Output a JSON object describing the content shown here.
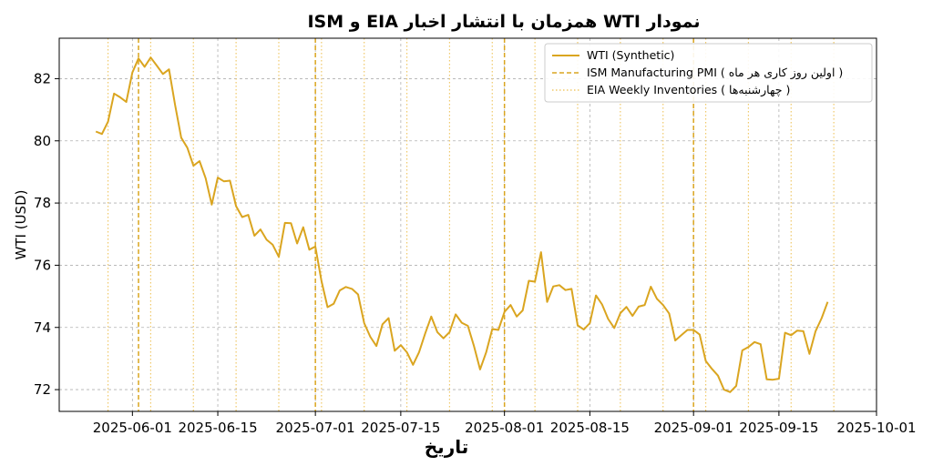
{
  "chart_data": {
    "type": "line",
    "title": "نمودار WTI همزمان با انتشار اخبار EIA و ISM",
    "xlabel": "تاریخ",
    "ylabel": "WTI (USD)",
    "xlim": [
      "2025-05-20",
      "2025-10-01"
    ],
    "ylim": [
      71.3,
      83.3
    ],
    "grid": true,
    "legend_position": "top-right",
    "x_ticks": [
      "2025-06-01",
      "2025-06-15",
      "2025-07-01",
      "2025-07-15",
      "2025-08-01",
      "2025-08-15",
      "2025-09-01",
      "2025-09-15",
      "2025-10-01"
    ],
    "y_ticks": [
      72,
      74,
      76,
      78,
      80,
      82
    ],
    "colors": {
      "line": "#DAA520",
      "ism": "#DAA520",
      "eia": "#F0C96A"
    },
    "series": [
      {
        "name": "WTI (Synthetic)",
        "start_date": "2025-05-26",
        "x_step_days": 1,
        "values": [
          80.3,
          80.22,
          80.62,
          81.52,
          81.4,
          81.25,
          82.2,
          82.65,
          82.38,
          82.68,
          82.42,
          82.15,
          82.3,
          81.15,
          80.1,
          79.78,
          79.2,
          79.35,
          78.8,
          77.95,
          78.82,
          78.7,
          78.72,
          77.9,
          77.55,
          77.62,
          76.95,
          77.15,
          76.82,
          76.66,
          76.27,
          77.36,
          77.35,
          76.7,
          77.22,
          76.5,
          76.6,
          75.5,
          74.65,
          74.76,
          75.19,
          75.3,
          75.24,
          75.06,
          74.14,
          73.7,
          73.4,
          74.1,
          74.3,
          73.25,
          73.43,
          73.2,
          72.8,
          73.2,
          73.8,
          74.35,
          73.85,
          73.65,
          73.85,
          74.42,
          74.15,
          74.05,
          73.4,
          72.65,
          73.2,
          73.95,
          73.92,
          74.5,
          74.72,
          74.35,
          74.55,
          75.5,
          75.47,
          76.42,
          74.82,
          75.32,
          75.36,
          75.2,
          75.24,
          74.07,
          73.93,
          74.14,
          75.03,
          74.74,
          74.27,
          73.98,
          74.46,
          74.66,
          74.37,
          74.67,
          74.72,
          75.31,
          74.92,
          74.72,
          74.45,
          73.58,
          73.75,
          73.92,
          73.92,
          73.77,
          72.92,
          72.67,
          72.45,
          72.0,
          71.92,
          72.12,
          73.26,
          73.37,
          73.53,
          73.46,
          72.33,
          72.32,
          72.35,
          73.83,
          73.75,
          73.9,
          73.88,
          73.15,
          73.88,
          74.3,
          74.82
        ]
      }
    ],
    "event_lines": [
      {
        "name": "ISM Manufacturing PMI ( اولین روز کاری هر ماه )",
        "style": "dashed",
        "dates": [
          "2025-06-02",
          "2025-07-01",
          "2025-08-01",
          "2025-09-01"
        ]
      },
      {
        "name": "EIA Weekly Inventories ( چهارشنبه‌ها )",
        "style": "dotted",
        "dates": [
          "2025-05-28",
          "2025-06-04",
          "2025-06-11",
          "2025-06-18",
          "2025-06-25",
          "2025-07-02",
          "2025-07-09",
          "2025-07-16",
          "2025-07-23",
          "2025-07-30",
          "2025-08-06",
          "2025-08-13",
          "2025-08-20",
          "2025-08-27",
          "2025-09-03",
          "2025-09-10",
          "2025-09-17",
          "2025-09-24"
        ]
      }
    ]
  }
}
